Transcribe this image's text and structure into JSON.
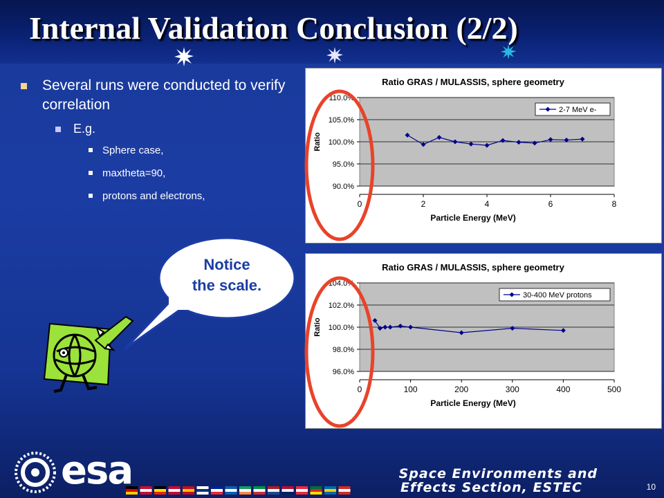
{
  "slide": {
    "title": "Internal Validation Conclusion (2/2)",
    "bullets": [
      {
        "level": 1,
        "text": "Several runs were conducted to verify correlation"
      },
      {
        "level": 2,
        "text": "E.g."
      },
      {
        "level": 3,
        "text": "Sphere case,"
      },
      {
        "level": 3,
        "text": "maxtheta=90,"
      },
      {
        "level": 3,
        "text": "protons and electrons,"
      }
    ],
    "callout": {
      "line1": "Notice",
      "line2": "the scale."
    },
    "footer": {
      "logo_text": "esa",
      "line1": "Space Environments and",
      "line2": "Effects Section, ESTEC",
      "page": "10"
    },
    "colors": {
      "background": "#1b3ca3",
      "plot_area": "#c0c0c0",
      "series": "#00008b",
      "highlight": "#e8432a"
    }
  },
  "chart_data": [
    {
      "type": "line",
      "title": "Ratio GRAS / MULASSIS, sphere geometry",
      "xlabel": "Particle Energy (MeV)",
      "ylabel": "Ratio",
      "xlim": [
        0,
        8
      ],
      "ylim": [
        90,
        110
      ],
      "xticks": [
        0,
        2,
        4,
        6,
        8
      ],
      "yticks": [
        90,
        95,
        100,
        105,
        110
      ],
      "ytick_labels": [
        "90.0%",
        "95.0%",
        "100.0%",
        "105.0%",
        "110.0%"
      ],
      "grid": true,
      "legend": "top-right",
      "series": [
        {
          "name": "2-7 MeV e-",
          "x": [
            1.5,
            2,
            2.5,
            3,
            3.5,
            4,
            4.5,
            5,
            5.5,
            6,
            6.5,
            7
          ],
          "y": [
            101.5,
            99.4,
            101.0,
            100.0,
            99.5,
            99.2,
            100.3,
            99.9,
            99.7,
            100.5,
            100.4,
            100.6
          ]
        }
      ]
    },
    {
      "type": "line",
      "title": "Ratio GRAS / MULASSIS, sphere geometry",
      "xlabel": "Particle Energy (MeV)",
      "ylabel": "Ratio",
      "xlim": [
        0,
        500
      ],
      "ylim": [
        96,
        104
      ],
      "xticks": [
        0,
        100,
        200,
        300,
        400,
        500
      ],
      "yticks": [
        96,
        98,
        100,
        102,
        104
      ],
      "ytick_labels": [
        "96.0%",
        "98.0%",
        "100.0%",
        "102.0%",
        "104.0%"
      ],
      "grid": true,
      "legend": "top-right",
      "series": [
        {
          "name": "30-400 MeV protons",
          "x": [
            30,
            40,
            50,
            60,
            80,
            100,
            200,
            300,
            400
          ],
          "y": [
            100.6,
            99.9,
            100.0,
            100.0,
            100.1,
            100.0,
            99.5,
            99.9,
            99.7
          ]
        }
      ]
    }
  ]
}
